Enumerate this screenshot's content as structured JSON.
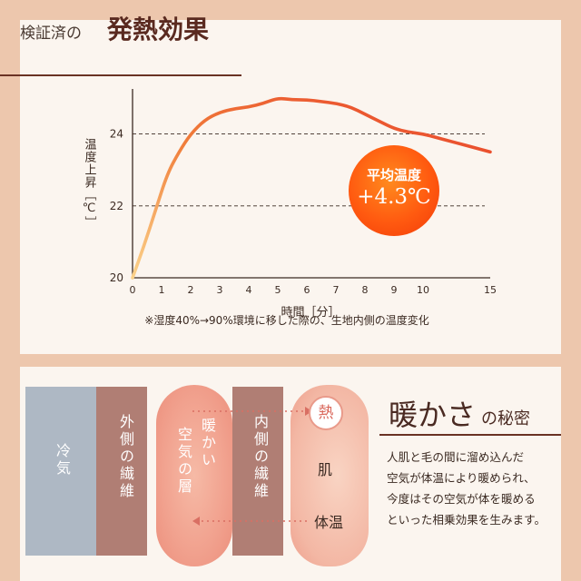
{
  "header": {
    "title_prefix": "検証済の",
    "title_main": "発熱効果"
  },
  "chart_data": {
    "type": "line",
    "xlabel": "時間［分］",
    "ylabel": "温度上昇［℃］",
    "x_ticks": [
      "0",
      "1",
      "2",
      "3",
      "4",
      "5",
      "6",
      "7",
      "8",
      "9",
      "10",
      "15"
    ],
    "y_ticks": [
      "20",
      "22",
      "24"
    ],
    "xlim": [
      0,
      15
    ],
    "ylim": [
      20,
      25.2
    ],
    "grid_lines_y": [
      22,
      24
    ],
    "series": [
      {
        "points": [
          [
            0,
            20.0
          ],
          [
            0.4,
            20.9
          ],
          [
            0.8,
            21.9
          ],
          [
            1.2,
            22.9
          ],
          [
            1.6,
            23.5
          ],
          [
            2,
            24.0
          ],
          [
            2.5,
            24.4
          ],
          [
            3,
            24.6
          ],
          [
            3.5,
            24.7
          ],
          [
            4,
            24.75
          ],
          [
            4.5,
            24.85
          ],
          [
            5,
            25.0
          ],
          [
            5.5,
            24.95
          ],
          [
            6,
            24.95
          ],
          [
            6.5,
            24.9
          ],
          [
            7,
            24.85
          ],
          [
            7.5,
            24.75
          ],
          [
            8,
            24.55
          ],
          [
            8.5,
            24.35
          ],
          [
            9,
            24.15
          ],
          [
            9.5,
            24.05
          ],
          [
            10,
            24.0
          ],
          [
            11,
            23.9
          ],
          [
            12,
            23.8
          ],
          [
            13,
            23.7
          ],
          [
            14,
            23.6
          ],
          [
            15,
            23.5
          ]
        ]
      }
    ],
    "colors": {
      "start": "#fbd28a",
      "mid": "#f07d3a",
      "end": "#e8402a"
    },
    "annotation": {
      "label": "平均温度",
      "value": "+4.3℃"
    }
  },
  "caption": "※湿度40%→90%環境に移した際の、生地内側の温度変化",
  "diagram": {
    "cold": "冷気",
    "outer_fiber": "外側の繊維",
    "warm_layer_line1": "暖かい",
    "warm_layer_line2": "空気の層",
    "inner_fiber": "内側の繊維",
    "heat_icon": "熱",
    "skin": "肌",
    "body_temp": "体温"
  },
  "section2": {
    "title_main": "暖かさ",
    "title_sub": "の秘密",
    "lines": [
      "人肌と毛の間に溜め込んだ",
      "空気が体温により暖められ、",
      "今度はその空気が体を暖める",
      "といった相乗効果を生みます。"
    ]
  }
}
